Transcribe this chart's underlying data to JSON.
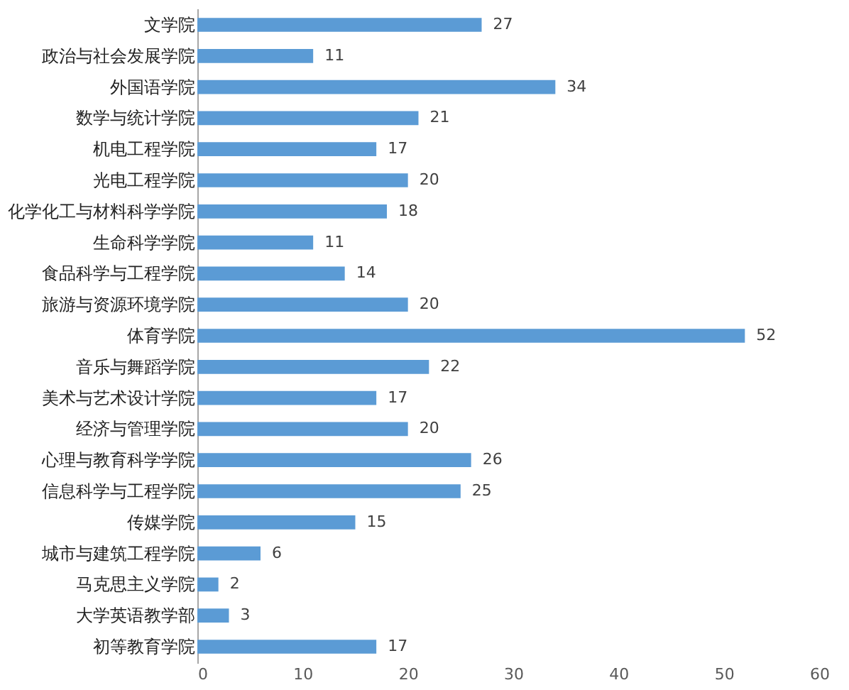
{
  "chart_data": {
    "type": "bar",
    "orientation": "horizontal",
    "categories": [
      "文学院",
      "政治与社会发展学院",
      "外国语学院",
      "数学与统计学院",
      "机电工程学院",
      "光电工程学院",
      "化学化工与材料科学学院",
      "生命科学学院",
      "食品科学与工程学院",
      "旅游与资源环境学院",
      "体育学院",
      "音乐与舞蹈学院",
      "美术与艺术设计学院",
      "经济与管理学院",
      "心理与教育科学学院",
      "信息科学与工程学院",
      "传媒学院",
      "城市与建筑工程学院",
      "马克思主义学院",
      "大学英语教学部",
      "初等教育学院"
    ],
    "values": [
      27,
      11,
      34,
      21,
      17,
      20,
      18,
      11,
      14,
      20,
      52,
      22,
      17,
      20,
      26,
      25,
      15,
      6,
      2,
      3,
      17
    ],
    "color": "#5b9bd5",
    "xlim": [
      0,
      60
    ],
    "xticks": [
      0,
      10,
      20,
      30,
      40,
      50,
      60
    ],
    "grid": false,
    "data_labels": true
  }
}
